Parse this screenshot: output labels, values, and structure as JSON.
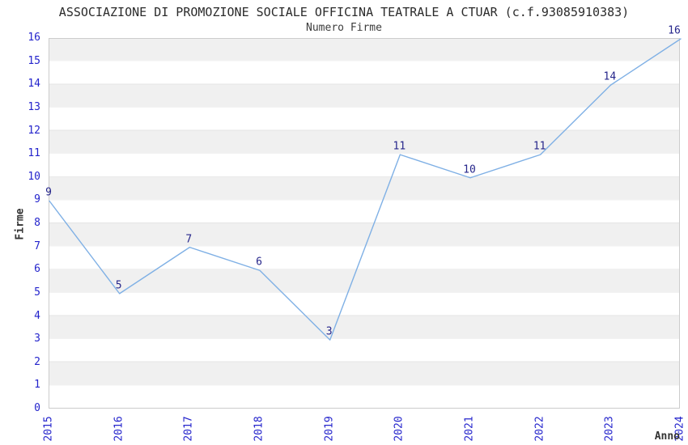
{
  "header": {
    "title": "ASSOCIAZIONE DI PROMOZIONE SOCIALE OFFICINA TEATRALE A CTUAR (c.f.93085910383)",
    "subtitle": "Numero Firme"
  },
  "chart_data": {
    "type": "line",
    "title": "ASSOCIAZIONE DI PROMOZIONE SOCIALE OFFICINA TEATRALE A CTUAR (c.f.93085910383)",
    "subtitle": "Numero Firme",
    "xlabel": "Anno",
    "ylabel": "Firme",
    "categories": [
      2015,
      2016,
      2017,
      2018,
      2019,
      2020,
      2021,
      2022,
      2023,
      2024
    ],
    "values": [
      9,
      5,
      7,
      6,
      3,
      11,
      10,
      11,
      14,
      16
    ],
    "ylim": [
      0,
      16
    ],
    "ytick_step": 1,
    "yticks": [
      0,
      1,
      2,
      3,
      4,
      5,
      6,
      7,
      8,
      9,
      10,
      11,
      12,
      13,
      14,
      15,
      16
    ],
    "grid": "horizontal-stripes",
    "legend": "none",
    "point_labels_visible": true,
    "colors": {
      "line": "#7fb0e5",
      "tick_label": "#2424cc",
      "point_label": "#26268b",
      "stripe": "#f0f0f0",
      "stripe_alt": "#ffffff",
      "plot_border": "#cccccc",
      "text": "#333333"
    }
  }
}
